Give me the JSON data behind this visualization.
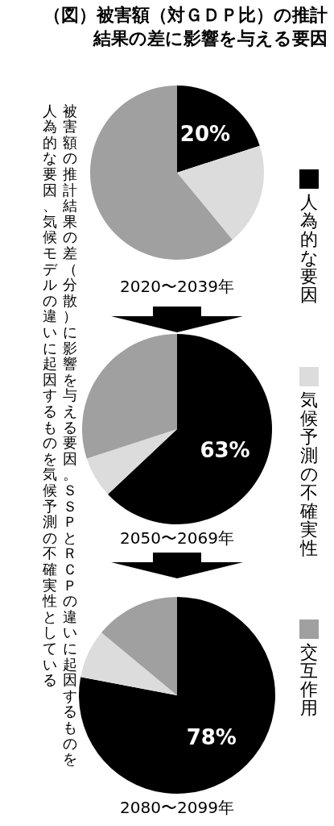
{
  "chart_data": [
    {
      "type": "pie",
      "title": "（図）被害額（対ＧＤＰ比）の推計結果の差に影響を与える要因",
      "annotations": [
        "被害額の推計結果の差（分散）に影響を与える要因。ＳＳＰとＲＣＰの違いに起因するものを",
        "人為的な要因、気候モデルの違いに起因するものを気候予測の不確実性としている"
      ],
      "legend": "right",
      "xlabel": "2020〜2039年",
      "categories": [
        "人為的な要因",
        "気候予測の不確実性",
        "交互作用"
      ],
      "values": [
        20,
        19,
        61
      ],
      "colors": [
        "#000000",
        "#dcdcdc",
        "#a0a0a0"
      ],
      "value_labels": [
        "20%",
        null,
        null
      ]
    },
    {
      "type": "pie",
      "xlabel": "2050〜2069年",
      "values": [
        63,
        7,
        30
      ],
      "colors": [
        "#000000",
        "#dcdcdc",
        "#a0a0a0"
      ],
      "value_labels": [
        "63%",
        null,
        null
      ]
    },
    {
      "type": "pie",
      "xlabel": "2080〜2099年",
      "values": [
        78,
        8,
        14
      ],
      "colors": [
        "#000000",
        "#dcdcdc",
        "#a0a0a0"
      ],
      "value_labels": [
        "78%",
        null,
        null
      ]
    }
  ]
}
